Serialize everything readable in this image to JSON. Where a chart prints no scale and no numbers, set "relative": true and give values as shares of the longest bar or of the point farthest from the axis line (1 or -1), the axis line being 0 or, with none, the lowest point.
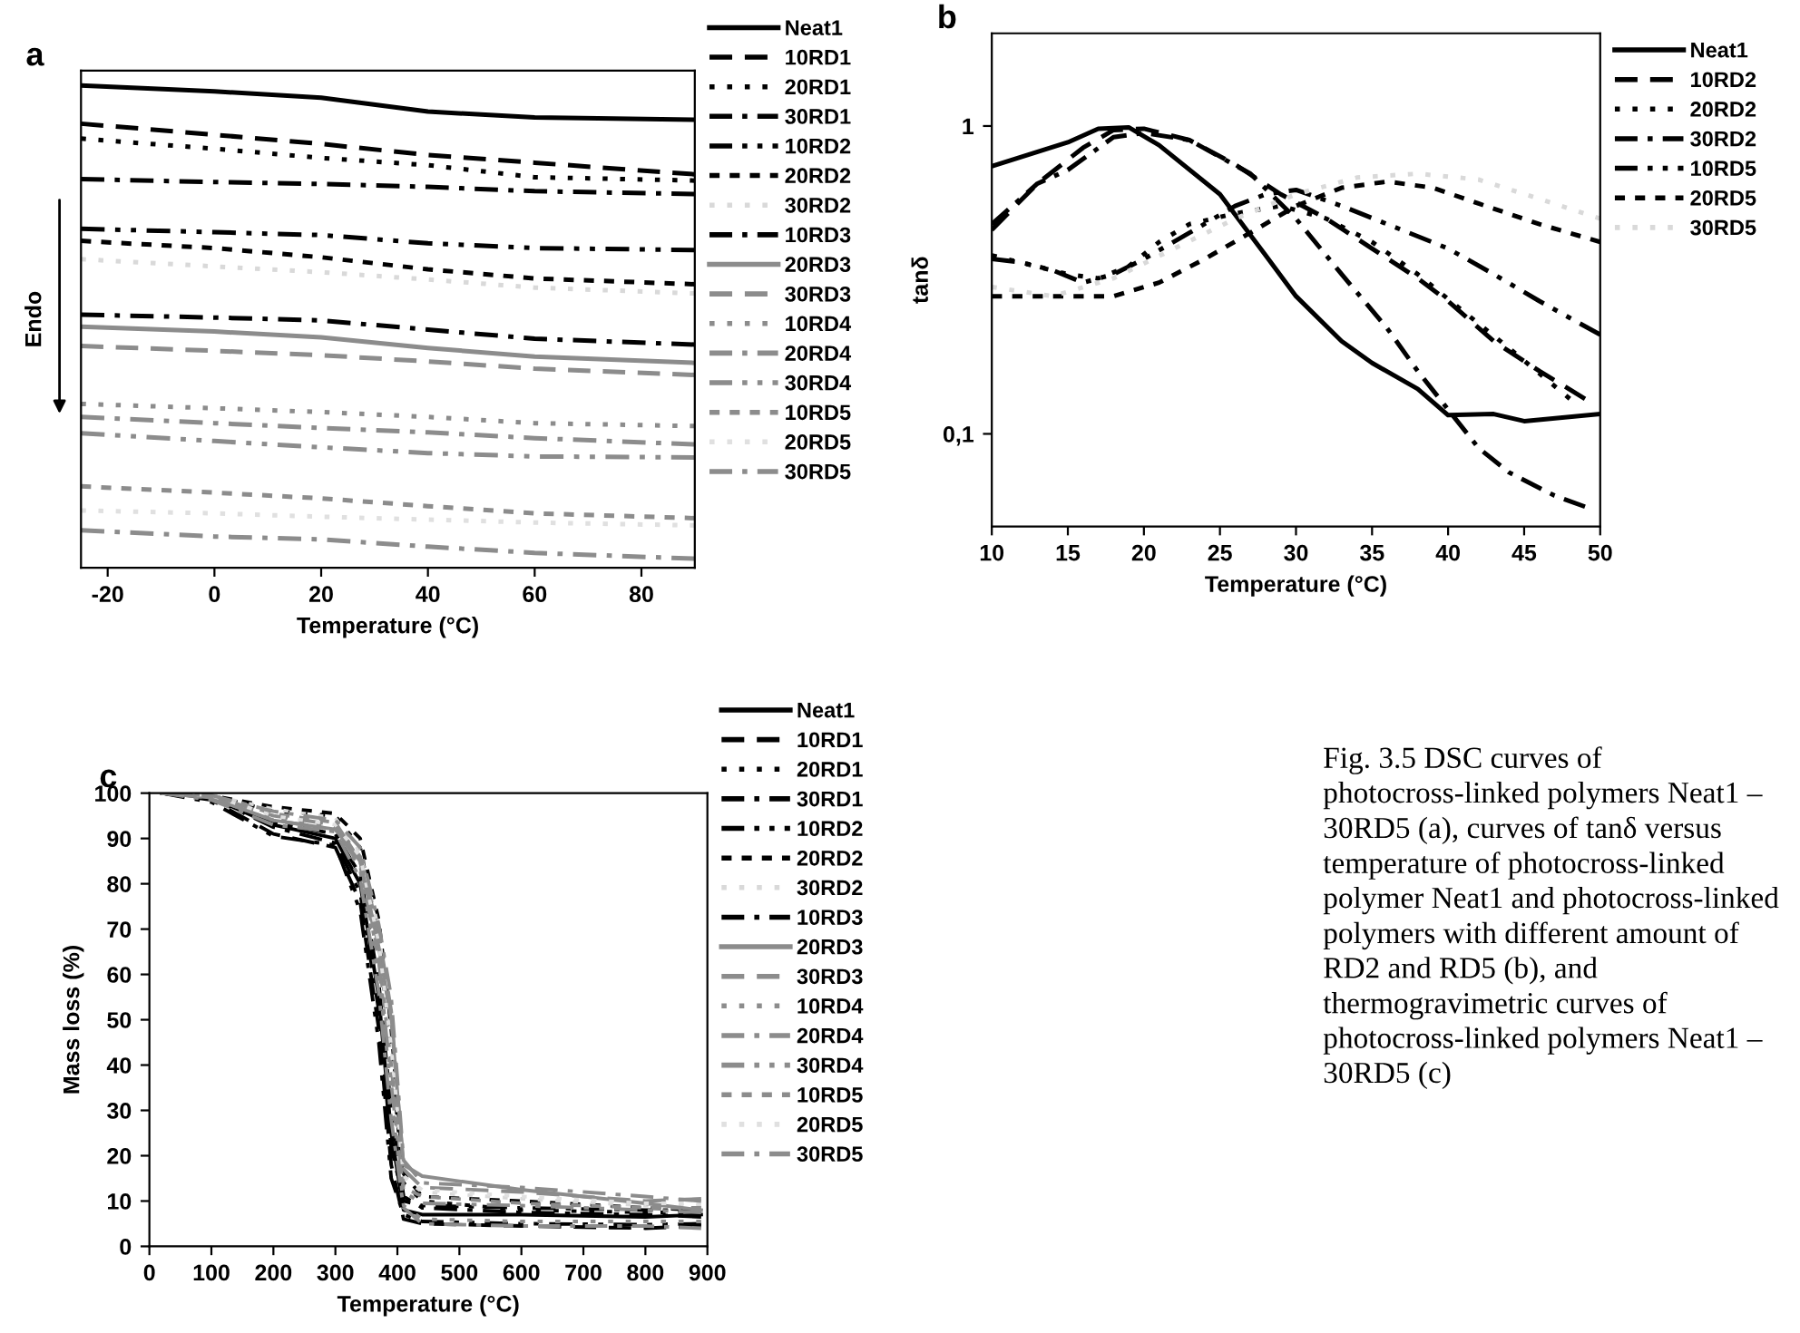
{
  "chart_data": [
    {
      "type": "line",
      "title": "a",
      "xlabel": "Temperature (°C)",
      "ylabel": "Endo",
      "relative": true,
      "legend": "right",
      "xlim": [
        -25,
        90
      ],
      "xticks": [
        -20,
        0,
        20,
        40,
        60,
        80
      ],
      "x": [
        -25,
        0,
        20,
        40,
        60,
        90
      ],
      "series": [
        {
          "name": "Neat1",
          "color": "#000000",
          "line_style": "solid",
          "values": [
            1.0,
            0.988,
            0.975,
            0.946,
            0.934,
            0.929
          ]
        },
        {
          "name": "10RD1",
          "color": "#000000",
          "line_style": "dashed",
          "values": [
            0.921,
            0.898,
            0.879,
            0.856,
            0.84,
            0.816
          ]
        },
        {
          "name": "20RD1",
          "color": "#000000",
          "line_style": "dotted",
          "values": [
            0.89,
            0.869,
            0.85,
            0.835,
            0.81,
            0.803
          ]
        },
        {
          "name": "30RD1",
          "color": "#000000",
          "line_style": "dashdot",
          "values": [
            0.806,
            0.8,
            0.796,
            0.79,
            0.781,
            0.775
          ]
        },
        {
          "name": "10RD2",
          "color": "#000000",
          "line_style": "dashdotdot",
          "values": [
            0.703,
            0.696,
            0.69,
            0.673,
            0.663,
            0.659
          ]
        },
        {
          "name": "20RD2",
          "color": "#000000",
          "line_style": "shortdash",
          "values": [
            0.678,
            0.663,
            0.644,
            0.619,
            0.6,
            0.588
          ]
        },
        {
          "name": "30RD2",
          "color": "#d9d9d9",
          "line_style": "dotted",
          "values": [
            0.64,
            0.625,
            0.613,
            0.598,
            0.581,
            0.569
          ]
        },
        {
          "name": "10RD3",
          "color": "#000000",
          "line_style": "dashdot",
          "values": [
            0.525,
            0.519,
            0.513,
            0.494,
            0.475,
            0.463
          ]
        },
        {
          "name": "20RD3",
          "color": "#8c8c8c",
          "line_style": "solid",
          "values": [
            0.5,
            0.49,
            0.478,
            0.456,
            0.438,
            0.425
          ]
        },
        {
          "name": "30RD3",
          "color": "#8c8c8c",
          "line_style": "dashed",
          "values": [
            0.46,
            0.45,
            0.441,
            0.428,
            0.413,
            0.4
          ]
        },
        {
          "name": "10RD4",
          "color": "#8c8c8c",
          "line_style": "dotted",
          "values": [
            0.34,
            0.331,
            0.323,
            0.313,
            0.3,
            0.294
          ]
        },
        {
          "name": "20RD4",
          "color": "#8c8c8c",
          "line_style": "dashdot",
          "values": [
            0.313,
            0.3,
            0.29,
            0.281,
            0.269,
            0.256
          ]
        },
        {
          "name": "30RD4",
          "color": "#8c8c8c",
          "line_style": "dashdotdot",
          "values": [
            0.279,
            0.263,
            0.25,
            0.238,
            0.231,
            0.229
          ]
        },
        {
          "name": "10RD5",
          "color": "#8c8c8c",
          "line_style": "shortdash",
          "values": [
            0.169,
            0.156,
            0.144,
            0.128,
            0.113,
            0.103
          ]
        },
        {
          "name": "20RD5",
          "color": "#e0e0e0",
          "line_style": "dotted",
          "values": [
            0.119,
            0.113,
            0.106,
            0.1,
            0.094,
            0.088
          ]
        },
        {
          "name": "30RD5",
          "color": "#8c8c8c",
          "line_style": "dashdot",
          "values": [
            0.078,
            0.065,
            0.059,
            0.044,
            0.031,
            0.019
          ]
        }
      ]
    },
    {
      "type": "line",
      "title": "b",
      "xlabel": "Temperature (°C)",
      "ylabel": "tanδ",
      "log": "y",
      "legend": "right",
      "xlim": [
        10,
        50
      ],
      "xticks": [
        10,
        15,
        20,
        25,
        30,
        35,
        40,
        45,
        50
      ],
      "ylim": [
        0.05,
        2
      ],
      "yticks": [
        {
          "value": 0.1,
          "label": "0,1"
        },
        1
      ],
      "series": [
        {
          "name": "Neat1",
          "color": "#000000",
          "line_style": "solid",
          "x": [
            10,
            15,
            17,
            19,
            21,
            25,
            28,
            30,
            33,
            35,
            38,
            40,
            43,
            45,
            50
          ],
          "values": [
            0.74,
            0.885,
            0.98,
            0.99,
            0.866,
            0.6,
            0.38,
            0.28,
            0.2,
            0.17,
            0.14,
            0.115,
            0.116,
            0.11,
            0.116
          ]
        },
        {
          "name": "10RD2",
          "color": "#000000",
          "line_style": "dashed",
          "x": [
            10,
            13,
            16,
            18,
            20,
            23,
            26,
            29,
            32,
            35,
            38,
            40,
            43,
            46,
            49
          ],
          "values": [
            0.46,
            0.65,
            0.85,
            0.97,
            0.98,
            0.9,
            0.75,
            0.6,
            0.5,
            0.4,
            0.32,
            0.27,
            0.2,
            0.16,
            0.13
          ]
        },
        {
          "name": "20RD2",
          "color": "#000000",
          "line_style": "dotted",
          "x": [
            10,
            15,
            17,
            19,
            21,
            23,
            26,
            29,
            32,
            35,
            38,
            41,
            44,
            48
          ],
          "values": [
            0.38,
            0.33,
            0.32,
            0.35,
            0.42,
            0.48,
            0.52,
            0.55,
            0.5,
            0.42,
            0.33,
            0.25,
            0.19,
            0.13
          ]
        },
        {
          "name": "30RD2",
          "color": "#000000",
          "line_style": "dashdot",
          "x": [
            10,
            13,
            15,
            18,
            20,
            23,
            27,
            30,
            33,
            36,
            38,
            40,
            42,
            44,
            47,
            49
          ],
          "values": [
            0.48,
            0.65,
            0.72,
            0.92,
            0.95,
            0.9,
            0.7,
            0.5,
            0.33,
            0.22,
            0.16,
            0.12,
            0.09,
            0.075,
            0.063,
            0.058
          ]
        },
        {
          "name": "10RD5",
          "color": "#000000",
          "line_style": "dashdotdot",
          "x": [
            10,
            12,
            14,
            16,
            18,
            20,
            23,
            26,
            28,
            30,
            33,
            36,
            40,
            43,
            46,
            50
          ],
          "values": [
            0.37,
            0.36,
            0.34,
            0.31,
            0.33,
            0.37,
            0.45,
            0.55,
            0.6,
            0.62,
            0.55,
            0.48,
            0.4,
            0.33,
            0.27,
            0.21
          ]
        },
        {
          "name": "20RD5",
          "color": "#000000",
          "line_style": "shortdash",
          "x": [
            10,
            15,
            18,
            21,
            24,
            27,
            30,
            33,
            36,
            39,
            42,
            46,
            50
          ],
          "values": [
            0.28,
            0.28,
            0.28,
            0.31,
            0.37,
            0.45,
            0.55,
            0.63,
            0.66,
            0.63,
            0.56,
            0.48,
            0.42
          ]
        },
        {
          "name": "30RD5",
          "color": "#d9d9d9",
          "line_style": "dotted",
          "x": [
            10,
            14,
            18,
            22,
            26,
            30,
            34,
            38,
            42,
            46,
            50
          ],
          "values": [
            0.3,
            0.28,
            0.32,
            0.4,
            0.5,
            0.6,
            0.68,
            0.7,
            0.67,
            0.58,
            0.5
          ]
        }
      ]
    },
    {
      "type": "line",
      "title": "c",
      "xlabel": "Temperature (°C)",
      "ylabel": "Mass loss (%)",
      "legend": "right",
      "xlim": [
        0,
        900
      ],
      "xticks": [
        0,
        100,
        200,
        300,
        400,
        500,
        600,
        700,
        800,
        900
      ],
      "ylim": [
        0,
        100
      ],
      "yticks": [
        0,
        10,
        20,
        30,
        40,
        50,
        60,
        70,
        80,
        90,
        100
      ],
      "x": [
        20,
        100,
        200,
        300,
        340,
        370,
        390,
        410,
        440,
        600,
        800,
        890
      ],
      "annotations": [
        "Fig. 3.5 DSC curves of photocross-linked polymers Neat1 – 30RD5 (a), curves of tanδ versus temperature of photocross-linked polymer Neat1 and photocross-linked polymers with different amount of RD2 and RD5 (b), and thermogravimetric curves of photocross-linked polymers Neat1 – 30RD5 (c)"
      ],
      "series": [
        {
          "name": "Neat1",
          "color": "#000000",
          "line_style": "solid",
          "values": [
            100,
            99,
            93,
            90,
            80,
            55,
            25,
            8,
            7,
            7,
            6.5,
            7
          ]
        },
        {
          "name": "10RD1",
          "color": "#000000",
          "line_style": "dashed",
          "values": [
            100,
            98.5,
            91,
            88,
            76,
            48,
            18,
            6,
            5,
            4.5,
            4,
            4.5
          ]
        },
        {
          "name": "20RD1",
          "color": "#000000",
          "line_style": "dotted",
          "values": [
            100,
            99.5,
            96,
            95,
            88,
            68,
            42,
            14,
            10,
            8,
            7.5,
            7.5
          ]
        },
        {
          "name": "30RD1",
          "color": "#000000",
          "line_style": "dashdot",
          "values": [
            100,
            99,
            92.5,
            89,
            78,
            52,
            22,
            10,
            9,
            8.5,
            8,
            8
          ]
        },
        {
          "name": "10RD2",
          "color": "#000000",
          "line_style": "dashdotdot",
          "values": [
            100,
            98,
            90.5,
            88.5,
            74,
            45,
            15,
            7,
            5.5,
            5,
            4.8,
            5
          ]
        },
        {
          "name": "20RD2",
          "color": "#000000",
          "line_style": "shortdash",
          "values": [
            100,
            99.5,
            97,
            95.5,
            90,
            72,
            48,
            16,
            11,
            10,
            8.5,
            8
          ]
        },
        {
          "name": "30RD2",
          "color": "#d9d9d9",
          "line_style": "dotted",
          "values": [
            100,
            99.5,
            96.5,
            94.5,
            87,
            70,
            45,
            15,
            12,
            10.5,
            9,
            9
          ]
        },
        {
          "name": "10RD3",
          "color": "#000000",
          "line_style": "dashdot",
          "values": [
            100,
            99,
            93.5,
            91,
            82,
            58,
            30,
            11,
            8.5,
            7.5,
            7,
            6.5
          ]
        },
        {
          "name": "20RD3",
          "color": "#8c8c8c",
          "line_style": "solid",
          "values": [
            100,
            99,
            94,
            92,
            85,
            66,
            50,
            18,
            15.5,
            12.5,
            9.5,
            8
          ]
        },
        {
          "name": "30RD3",
          "color": "#8c8c8c",
          "line_style": "dashed",
          "values": [
            100,
            99.5,
            95,
            93,
            86,
            69,
            52,
            17,
            13,
            12,
            10,
            10.5
          ]
        },
        {
          "name": "10RD4",
          "color": "#8c8c8c",
          "line_style": "dotted",
          "values": [
            100,
            99,
            94.5,
            92.5,
            83,
            60,
            34,
            9,
            6,
            5.5,
            5.5,
            5.5
          ]
        },
        {
          "name": "20RD4",
          "color": "#8c8c8c",
          "line_style": "dashdot",
          "values": [
            100,
            98.5,
            93,
            91.5,
            81,
            56,
            28,
            8.5,
            5,
            4.5,
            4.5,
            4
          ]
        },
        {
          "name": "30RD4",
          "color": "#8c8c8c",
          "line_style": "dashdotdot",
          "values": [
            100,
            99,
            94,
            92,
            84,
            63,
            36,
            12,
            9.5,
            9,
            8,
            7.5
          ]
        },
        {
          "name": "10RD5",
          "color": "#8c8c8c",
          "line_style": "shortdash",
          "values": [
            100,
            99.5,
            95.5,
            93.5,
            85,
            64,
            40,
            13,
            11,
            9.5,
            8.5,
            8.5
          ]
        },
        {
          "name": "20RD5",
          "color": "#e0e0e0",
          "line_style": "dotted",
          "values": [
            100,
            99.5,
            95,
            93,
            86,
            67,
            44,
            15.5,
            12.5,
            11,
            9.5,
            9.5
          ]
        },
        {
          "name": "30RD5",
          "color": "#8c8c8c",
          "line_style": "dashdot",
          "values": [
            100,
            99.5,
            96,
            94,
            88,
            71,
            55,
            19,
            14,
            13,
            11,
            10
          ]
        }
      ]
    }
  ]
}
